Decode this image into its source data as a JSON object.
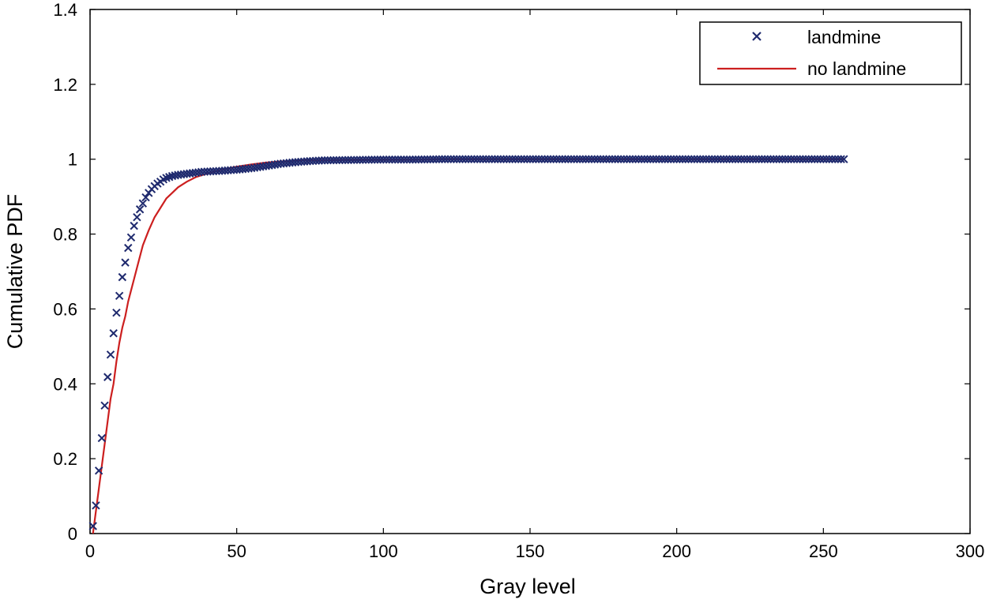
{
  "chart_data": {
    "type": "line",
    "title": "",
    "xlabel": "Gray level",
    "ylabel": "Cumulative PDF",
    "xlim": [
      0,
      300
    ],
    "ylim": [
      0,
      1.4
    ],
    "xticks": [
      0,
      50,
      100,
      150,
      200,
      250,
      300
    ],
    "yticks": [
      0,
      0.2,
      0.4,
      0.6,
      0.8,
      1,
      1.2,
      1.4
    ],
    "xtick_labels": [
      "0",
      "50",
      "100",
      "150",
      "200",
      "250",
      "300"
    ],
    "ytick_labels": [
      "0",
      "0.2",
      "0.4",
      "0.6",
      "0.8",
      "1",
      "1.2",
      "1.4"
    ],
    "grid": false,
    "legend_position": "top-right",
    "series": [
      {
        "name": "landmine",
        "marker": "x",
        "color": "#1f2a6e",
        "x": [
          1,
          2,
          3,
          4,
          5,
          6,
          7,
          8,
          9,
          10,
          11,
          12,
          13,
          14,
          15,
          16,
          17,
          18,
          19,
          20,
          21,
          22,
          23,
          24,
          25,
          26,
          28,
          30,
          32,
          34,
          36,
          38,
          40,
          45,
          50,
          55,
          60,
          65,
          70,
          75,
          80,
          90,
          100,
          110,
          120,
          130,
          140,
          150,
          160,
          170,
          180,
          190,
          200,
          210,
          220,
          230,
          240,
          250,
          257
        ],
        "y": [
          0.02,
          0.075,
          0.168,
          0.255,
          0.342,
          0.418,
          0.478,
          0.535,
          0.59,
          0.635,
          0.685,
          0.724,
          0.763,
          0.791,
          0.822,
          0.845,
          0.866,
          0.882,
          0.898,
          0.91,
          0.92,
          0.928,
          0.935,
          0.94,
          0.946,
          0.95,
          0.955,
          0.958,
          0.96,
          0.962,
          0.964,
          0.966,
          0.967,
          0.969,
          0.972,
          0.976,
          0.982,
          0.988,
          0.992,
          0.995,
          0.997,
          0.998,
          0.999,
          0.999,
          1.0,
          1.0,
          1.0,
          1.0,
          1.0,
          1.0,
          1.0,
          1.0,
          1.0,
          1.0,
          1.0,
          1.0,
          1.0,
          1.0,
          1.0
        ]
      },
      {
        "name": "no landmine",
        "marker": "line",
        "color": "#cc1f1f",
        "x": [
          1,
          2,
          3,
          4,
          5,
          6,
          7,
          8,
          9,
          10,
          11,
          12,
          13,
          14,
          15,
          16,
          17,
          18,
          19,
          20,
          22,
          24,
          26,
          28,
          30,
          33,
          36,
          40,
          45,
          50,
          55,
          60,
          65,
          70,
          80,
          90,
          100,
          120,
          150,
          200,
          250,
          257
        ],
        "y": [
          0.0,
          0.06,
          0.12,
          0.18,
          0.24,
          0.3,
          0.36,
          0.4,
          0.46,
          0.51,
          0.55,
          0.58,
          0.62,
          0.65,
          0.68,
          0.71,
          0.74,
          0.77,
          0.79,
          0.81,
          0.845,
          0.87,
          0.895,
          0.91,
          0.925,
          0.94,
          0.952,
          0.962,
          0.972,
          0.98,
          0.986,
          0.991,
          0.994,
          0.996,
          0.998,
          0.999,
          1.0,
          1.0,
          1.0,
          1.0,
          1.0,
          1.0
        ]
      }
    ]
  }
}
